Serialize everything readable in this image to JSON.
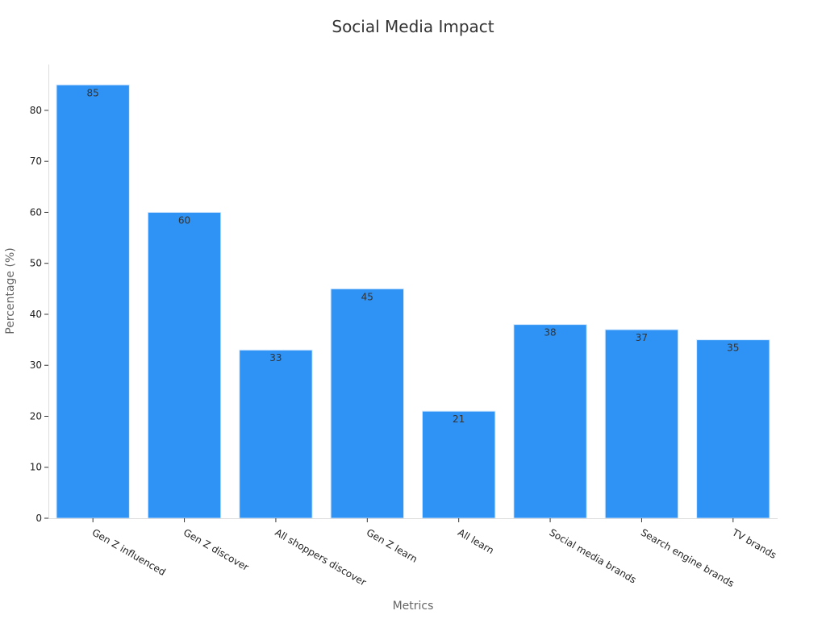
{
  "chart_data": {
    "type": "bar",
    "title": "Social Media Impact",
    "xlabel": "Metrics",
    "ylabel": "Percentage (%)",
    "categories": [
      "Gen Z influenced",
      "Gen Z discover",
      "All shoppers discover",
      "Gen Z learn",
      "All learn",
      "Social media brands",
      "Search engine brands",
      "TV brands"
    ],
    "values": [
      85,
      60,
      33,
      45,
      21,
      38,
      37,
      35
    ],
    "yticks": [
      0,
      10,
      20,
      30,
      40,
      50,
      60,
      70,
      80
    ],
    "ylim": [
      0,
      89
    ],
    "grid": false,
    "legend": "none",
    "bar_color": "#2f93f6",
    "bar_edge_color": "#d6e9fd"
  }
}
